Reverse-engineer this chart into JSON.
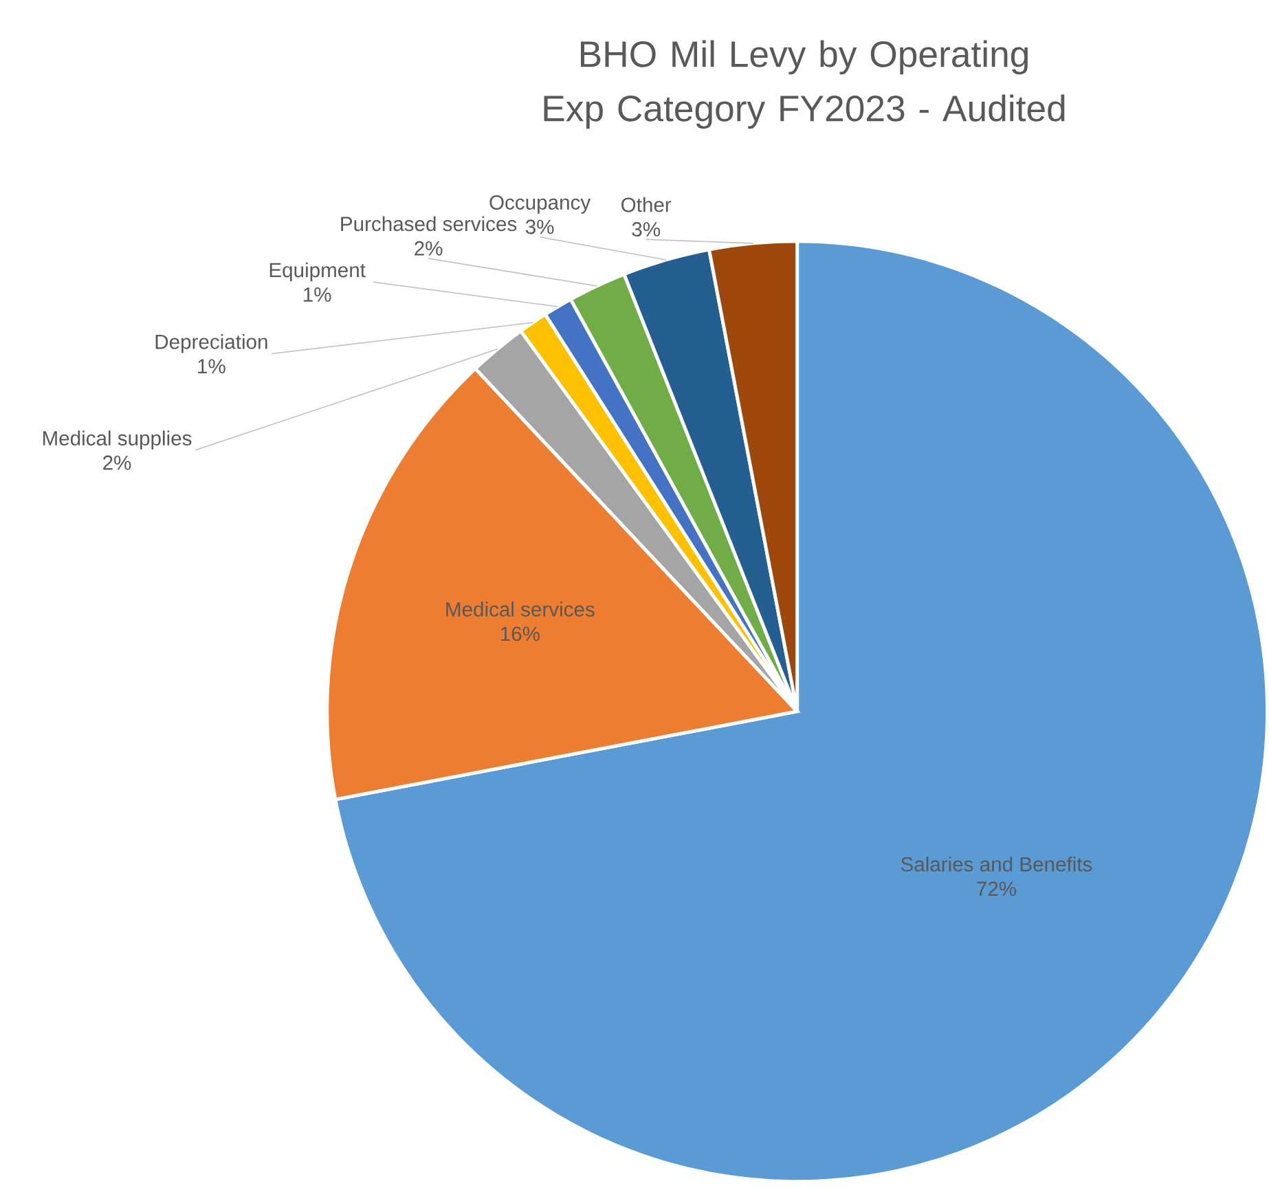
{
  "chart_data": {
    "type": "pie",
    "title": "BHO Mil Levy by Operating Exp Category FY2023 - Audited",
    "categories": [
      "Salaries and Benefits",
      "Medical services",
      "Medical supplies",
      "Depreciation",
      "Equipment",
      "Purchased services",
      "Occupancy",
      "Other"
    ],
    "values": [
      72,
      16,
      2,
      1,
      1,
      2,
      3,
      3
    ],
    "value_labels": [
      "72%",
      "16%",
      "2%",
      "1%",
      "1%",
      "2%",
      "3%",
      "3%"
    ],
    "colors": [
      "#5b9bd5",
      "#ed7d31",
      "#a5a5a5",
      "#ffc000",
      "#4472c4",
      "#70ad47",
      "#255e91",
      "#9e480e"
    ]
  }
}
